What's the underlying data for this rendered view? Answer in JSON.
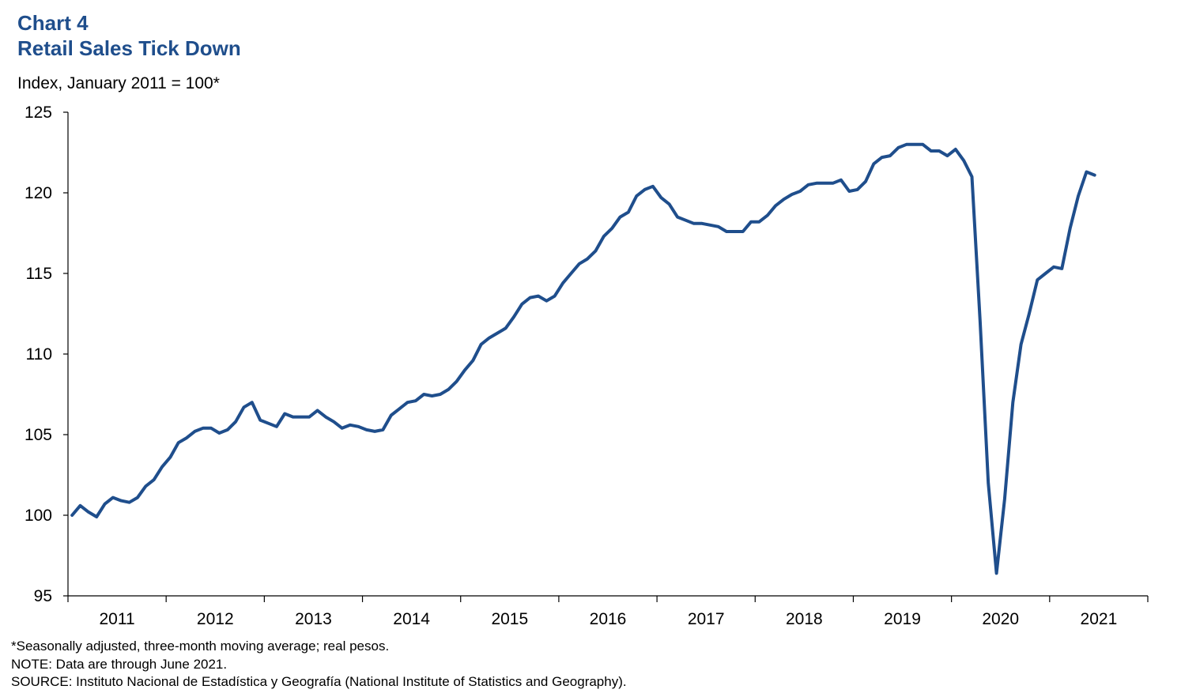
{
  "header": {
    "chart_label": "Chart 4",
    "title": "Retail Sales Tick Down",
    "unit_label": "Index, January 2011 = 100*"
  },
  "footnotes": {
    "note1": "*Seasonally adjusted, three-month moving average; real pesos.",
    "note2": "NOTE: Data are through June 2021.",
    "note3": "SOURCE: Instituto Nacional de Estadística y Geografía (National Institute of Statistics and Geography)."
  },
  "colors": {
    "series": "#1f4e8c",
    "title": "#1f4e8c",
    "axis": "#000000"
  },
  "chart_data": {
    "type": "line",
    "title": "Retail Sales Tick Down",
    "ylabel": "Index, January 2011 = 100*",
    "xlabel": "",
    "ylim": [
      95,
      125
    ],
    "yticks": [
      95,
      100,
      105,
      110,
      115,
      120,
      125
    ],
    "x_categories": [
      "2011",
      "2012",
      "2013",
      "2014",
      "2015",
      "2016",
      "2017",
      "2018",
      "2019",
      "2020",
      "2021"
    ],
    "months_per_category": 12,
    "grid": false,
    "legend": "none",
    "series": [
      {
        "start": "2011-01",
        "end": "2021-06",
        "frequency": "monthly",
        "values": [
          100.0,
          100.6,
          100.2,
          99.9,
          100.7,
          101.1,
          100.9,
          100.8,
          101.1,
          101.8,
          102.2,
          103.0,
          103.6,
          104.5,
          104.8,
          105.2,
          105.4,
          105.4,
          105.1,
          105.3,
          105.8,
          106.7,
          107.0,
          105.9,
          105.7,
          105.5,
          106.3,
          106.1,
          106.1,
          106.1,
          106.5,
          106.1,
          105.8,
          105.4,
          105.6,
          105.5,
          105.3,
          105.2,
          105.3,
          106.2,
          106.6,
          107.0,
          107.1,
          107.5,
          107.4,
          107.5,
          107.8,
          108.3,
          109.0,
          109.6,
          110.6,
          111.0,
          111.3,
          111.6,
          112.3,
          113.1,
          113.5,
          113.6,
          113.3,
          113.6,
          114.4,
          115.0,
          115.6,
          115.9,
          116.4,
          117.3,
          117.8,
          118.5,
          118.8,
          119.8,
          120.2,
          120.4,
          119.7,
          119.3,
          118.5,
          118.3,
          118.1,
          118.1,
          118.0,
          117.9,
          117.6,
          117.6,
          117.6,
          118.2,
          118.2,
          118.6,
          119.2,
          119.6,
          119.9,
          120.1,
          120.5,
          120.6,
          120.6,
          120.6,
          120.8,
          120.1,
          120.2,
          120.7,
          121.8,
          122.2,
          122.3,
          122.8,
          123.0,
          123.0,
          123.0,
          122.6,
          122.6,
          122.3,
          122.7,
          122.0,
          121.0,
          112.0,
          102.0,
          96.4,
          101.0,
          107.0,
          110.6,
          112.5,
          114.6,
          115.0,
          115.4,
          115.3,
          117.8,
          119.8,
          121.3,
          121.1
        ]
      }
    ]
  }
}
